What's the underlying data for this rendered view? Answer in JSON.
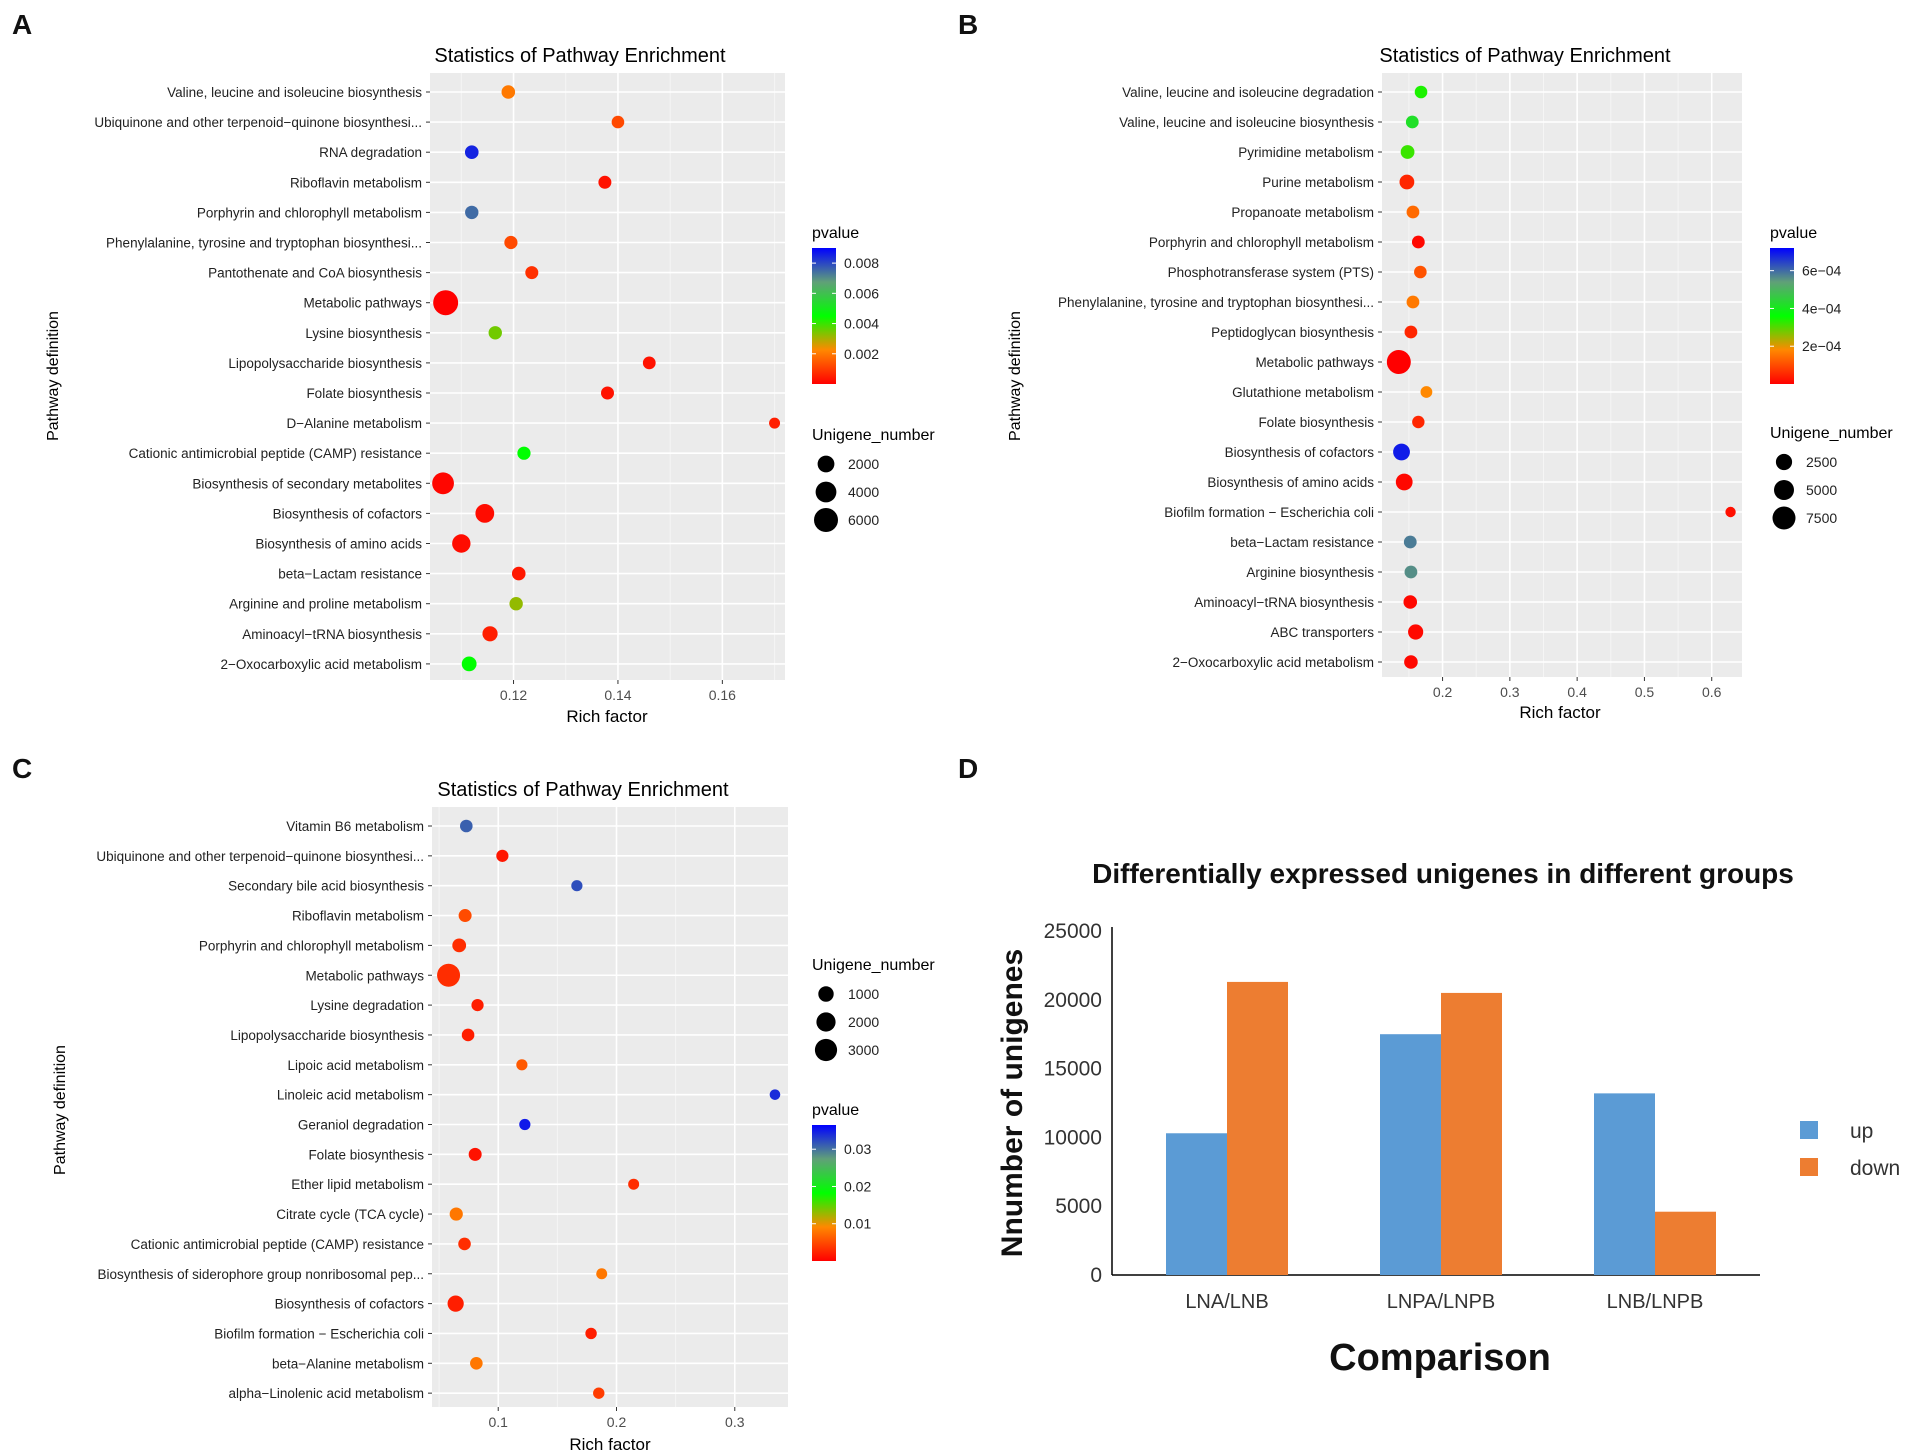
{
  "chart_data": [
    {
      "panel": "A",
      "type": "scatter",
      "title": "Statistics of Pathway Enrichment",
      "xlabel": "Rich factor",
      "ylabel": "Pathway definition",
      "xlim": [
        0.104,
        0.172
      ],
      "xticks": [
        0.12,
        0.14,
        0.16
      ],
      "xtick_labels": [
        "0.12",
        "0.14",
        "0.16"
      ],
      "pvalue_range": [
        0,
        0.009
      ],
      "color_legend": {
        "title": "pvalue",
        "ticks": [
          0.008,
          0.006,
          0.004,
          0.002
        ],
        "labels": [
          "0.008",
          "0.006",
          "0.004",
          "0.002"
        ]
      },
      "size_legend": {
        "title": "Unigene_number",
        "values": [
          2000,
          4000,
          6000
        ],
        "labels": [
          "2000",
          "4000",
          "6000"
        ]
      },
      "points": [
        {
          "label": "Valine, leucine and isoleucine biosynthesis",
          "x": 0.119,
          "pvalue": 0.002,
          "n": 900
        },
        {
          "label": "Ubiquinone and other terpenoid−quinone biosynthesi...",
          "x": 0.14,
          "pvalue": 0.0012,
          "n": 650
        },
        {
          "label": "RNA degradation",
          "x": 0.112,
          "pvalue": 0.0085,
          "n": 900
        },
        {
          "label": "Riboflavin metabolism",
          "x": 0.1375,
          "pvalue": 0.0003,
          "n": 750
        },
        {
          "label": "Porphyrin and chlorophyll metabolism",
          "x": 0.112,
          "pvalue": 0.0075,
          "n": 850
        },
        {
          "label": "Phenylalanine, tyrosine and tryptophan biosynthesi...",
          "x": 0.1195,
          "pvalue": 0.0012,
          "n": 800
        },
        {
          "label": "Pantothenate and CoA biosynthesis",
          "x": 0.1235,
          "pvalue": 0.0008,
          "n": 750
        },
        {
          "label": "Metabolic pathways",
          "x": 0.107,
          "pvalue": 0.0,
          "n": 6800
        },
        {
          "label": "Lysine biosynthesis",
          "x": 0.1165,
          "pvalue": 0.0035,
          "n": 850
        },
        {
          "label": "Lipopolysaccharide biosynthesis",
          "x": 0.146,
          "pvalue": 0.0003,
          "n": 700
        },
        {
          "label": "Folate biosynthesis",
          "x": 0.138,
          "pvalue": 0.0003,
          "n": 750
        },
        {
          "label": "D−Alanine metabolism",
          "x": 0.17,
          "pvalue": 0.0005,
          "n": 350
        },
        {
          "label": "Cationic antimicrobial peptide (CAMP) resistance",
          "x": 0.122,
          "pvalue": 0.0045,
          "n": 800
        },
        {
          "label": "Biosynthesis of secondary metabolites",
          "x": 0.1065,
          "pvalue": 0.0001,
          "n": 4600
        },
        {
          "label": "Biosynthesis of cofactors",
          "x": 0.1145,
          "pvalue": 0.0002,
          "n": 2900
        },
        {
          "label": "Biosynthesis of amino acids",
          "x": 0.11,
          "pvalue": 0.0002,
          "n": 2700
        },
        {
          "label": "beta−Lactam resistance",
          "x": 0.121,
          "pvalue": 0.0004,
          "n": 900
        },
        {
          "label": "Arginine and proline metabolism",
          "x": 0.1205,
          "pvalue": 0.0032,
          "n": 850
        },
        {
          "label": "Aminoacyl−tRNA biosynthesis",
          "x": 0.1155,
          "pvalue": 0.0005,
          "n": 1400
        },
        {
          "label": "2−Oxocarboxylic acid metabolism",
          "x": 0.1115,
          "pvalue": 0.0045,
          "n": 1300
        }
      ]
    },
    {
      "panel": "B",
      "type": "scatter",
      "title": "Statistics of Pathway Enrichment",
      "xlabel": "Rich factor",
      "ylabel": "Pathway definition",
      "xlim": [
        0.11,
        0.645
      ],
      "xticks": [
        0.2,
        0.3,
        0.4,
        0.5,
        0.6
      ],
      "xtick_labels": [
        "0.2",
        "0.3",
        "0.4",
        "0.5",
        "0.6"
      ],
      "pvalue_range": [
        0,
        0.00072
      ],
      "color_legend": {
        "title": "pvalue",
        "ticks": [
          0.0006,
          0.0004,
          0.0002
        ],
        "labels": [
          "6e−04",
          "4e−04",
          "2e−04"
        ]
      },
      "size_legend": {
        "title": "Unigene_number",
        "values": [
          2500,
          5000,
          7500
        ],
        "labels": [
          "2500",
          "5000",
          "7500"
        ]
      },
      "points": [
        {
          "label": "Valine, leucine and isoleucine degradation",
          "x": 0.168,
          "pvalue": 0.00034,
          "n": 900
        },
        {
          "label": "Valine, leucine and isoleucine biosynthesis",
          "x": 0.155,
          "pvalue": 0.00042,
          "n": 1000
        },
        {
          "label": "Pyrimidine metabolism",
          "x": 0.148,
          "pvalue": 0.00032,
          "n": 1400
        },
        {
          "label": "Purine metabolism",
          "x": 0.147,
          "pvalue": 5e-05,
          "n": 1800
        },
        {
          "label": "Propanoate metabolism",
          "x": 0.156,
          "pvalue": 0.00014,
          "n": 1000
        },
        {
          "label": "Porphyrin and chlorophyll metabolism",
          "x": 0.164,
          "pvalue": 1e-05,
          "n": 1000
        },
        {
          "label": "Phosphotransferase system (PTS)",
          "x": 0.167,
          "pvalue": 0.00011,
          "n": 900
        },
        {
          "label": "Phenylalanine, tyrosine and tryptophan biosynthesi...",
          "x": 0.156,
          "pvalue": 0.00016,
          "n": 1000
        },
        {
          "label": "Peptidoglycan biosynthesis",
          "x": 0.153,
          "pvalue": 5e-05,
          "n": 1000
        },
        {
          "label": "Metabolic pathways",
          "x": 0.135,
          "pvalue": 0.0,
          "n": 8500
        },
        {
          "label": "Glutathione metabolism",
          "x": 0.176,
          "pvalue": 0.00018,
          "n": 650
        },
        {
          "label": "Folate biosynthesis",
          "x": 0.164,
          "pvalue": 5e-05,
          "n": 850
        },
        {
          "label": "Biosynthesis of cofactors",
          "x": 0.139,
          "pvalue": 0.00069,
          "n": 2800
        },
        {
          "label": "Biosynthesis of amino acids",
          "x": 0.143,
          "pvalue": 1e-05,
          "n": 2800
        },
        {
          "label": "Biofilm formation − Escherichia coli",
          "x": 0.628,
          "pvalue": 2e-05,
          "n": 350
        },
        {
          "label": "beta−Lactam resistance",
          "x": 0.152,
          "pvalue": 0.00058,
          "n": 1000
        },
        {
          "label": "Arginine biosynthesis",
          "x": 0.153,
          "pvalue": 0.00056,
          "n": 1000
        },
        {
          "label": "Aminoacyl−tRNA biosynthesis",
          "x": 0.152,
          "pvalue": 1e-05,
          "n": 1300
        },
        {
          "label": "ABC transporters",
          "x": 0.16,
          "pvalue": 1e-05,
          "n": 2000
        },
        {
          "label": "2−Oxocarboxylic acid metabolism",
          "x": 0.153,
          "pvalue": 1e-05,
          "n": 1300
        }
      ]
    },
    {
      "panel": "C",
      "type": "scatter",
      "title": "Statistics of Pathway Enrichment",
      "xlabel": "Rich factor",
      "ylabel": "Pathway definition",
      "xlim": [
        0.044,
        0.345
      ],
      "xticks": [
        0.1,
        0.2,
        0.3
      ],
      "xtick_labels": [
        "0.1",
        "0.2",
        "0.3"
      ],
      "pvalue_range": [
        0,
        0.0365
      ],
      "color_legend": {
        "title": "pvalue",
        "ticks": [
          0.03,
          0.02,
          0.01
        ],
        "labels": [
          "0.03",
          "0.02",
          "0.01"
        ]
      },
      "size_legend": {
        "title": "Unigene_number",
        "values": [
          1000,
          2000,
          3000
        ],
        "labels": [
          "1000",
          "2000",
          "3000"
        ]
      },
      "points": [
        {
          "label": "Vitamin B6 metabolism",
          "x": 0.073,
          "pvalue": 0.031,
          "n": 500
        },
        {
          "label": "Ubiquinone and other terpenoid−quinone biosynthesi...",
          "x": 0.1035,
          "pvalue": 0.0015,
          "n": 450
        },
        {
          "label": "Secondary bile acid biosynthesis",
          "x": 0.1665,
          "pvalue": 0.032,
          "n": 300
        },
        {
          "label": "Riboflavin metabolism",
          "x": 0.072,
          "pvalue": 0.005,
          "n": 550
        },
        {
          "label": "Porphyrin and chlorophyll metabolism",
          "x": 0.067,
          "pvalue": 0.003,
          "n": 700
        },
        {
          "label": "Metabolic pathways",
          "x": 0.058,
          "pvalue": 0.003,
          "n": 3300
        },
        {
          "label": "Lysine degradation",
          "x": 0.0825,
          "pvalue": 0.002,
          "n": 450
        },
        {
          "label": "Lipopolysaccharide biosynthesis",
          "x": 0.0745,
          "pvalue": 0.002,
          "n": 500
        },
        {
          "label": "Lipoic acid metabolism",
          "x": 0.12,
          "pvalue": 0.006,
          "n": 320
        },
        {
          "label": "Linoleic acid metabolism",
          "x": 0.334,
          "pvalue": 0.034,
          "n": 250
        },
        {
          "label": "Geraniol degradation",
          "x": 0.1225,
          "pvalue": 0.035,
          "n": 320
        },
        {
          "label": "Folate biosynthesis",
          "x": 0.0805,
          "pvalue": 0.0012,
          "n": 550
        },
        {
          "label": "Ether lipid metabolism",
          "x": 0.2145,
          "pvalue": 0.003,
          "n": 280
        },
        {
          "label": "Citrate cycle (TCA cycle)",
          "x": 0.0645,
          "pvalue": 0.008,
          "n": 600
        },
        {
          "label": "Cationic antimicrobial peptide (CAMP) resistance",
          "x": 0.0715,
          "pvalue": 0.003,
          "n": 500
        },
        {
          "label": "Biosynthesis of siderophore group nonribosomal pep...",
          "x": 0.1875,
          "pvalue": 0.008,
          "n": 280
        },
        {
          "label": "Biosynthesis of cofactors",
          "x": 0.064,
          "pvalue": 0.002,
          "n": 1200
        },
        {
          "label": "Biofilm formation − Escherichia coli",
          "x": 0.1785,
          "pvalue": 0.002,
          "n": 330
        },
        {
          "label": "beta−Alanine metabolism",
          "x": 0.0815,
          "pvalue": 0.008,
          "n": 500
        },
        {
          "label": "alpha−Linolenic acid metabolism",
          "x": 0.185,
          "pvalue": 0.004,
          "n": 330
        }
      ]
    },
    {
      "panel": "D",
      "type": "bar",
      "title": "Differentially expressed unigenes in different groups",
      "xlabel": "Comparison",
      "ylabel": "Nnumber of unigenes",
      "categories": [
        "LNA/LNB",
        "LNPA/LNPB",
        "LNB/LNPB"
      ],
      "series": [
        {
          "name": "up",
          "color": "#5B9BD5",
          "values": [
            10300,
            17500,
            13200
          ]
        },
        {
          "name": "down",
          "color": "#ED7D31",
          "values": [
            21300,
            20500,
            4600
          ]
        }
      ],
      "ylim": [
        0,
        25000
      ],
      "yticks": [
        0,
        5000,
        10000,
        15000,
        20000,
        25000
      ],
      "ytick_labels": [
        "0",
        "5000",
        "10000",
        "15000",
        "20000",
        "25000"
      ]
    }
  ],
  "panels": {
    "A": "A",
    "B": "B",
    "C": "C",
    "D": "D"
  }
}
